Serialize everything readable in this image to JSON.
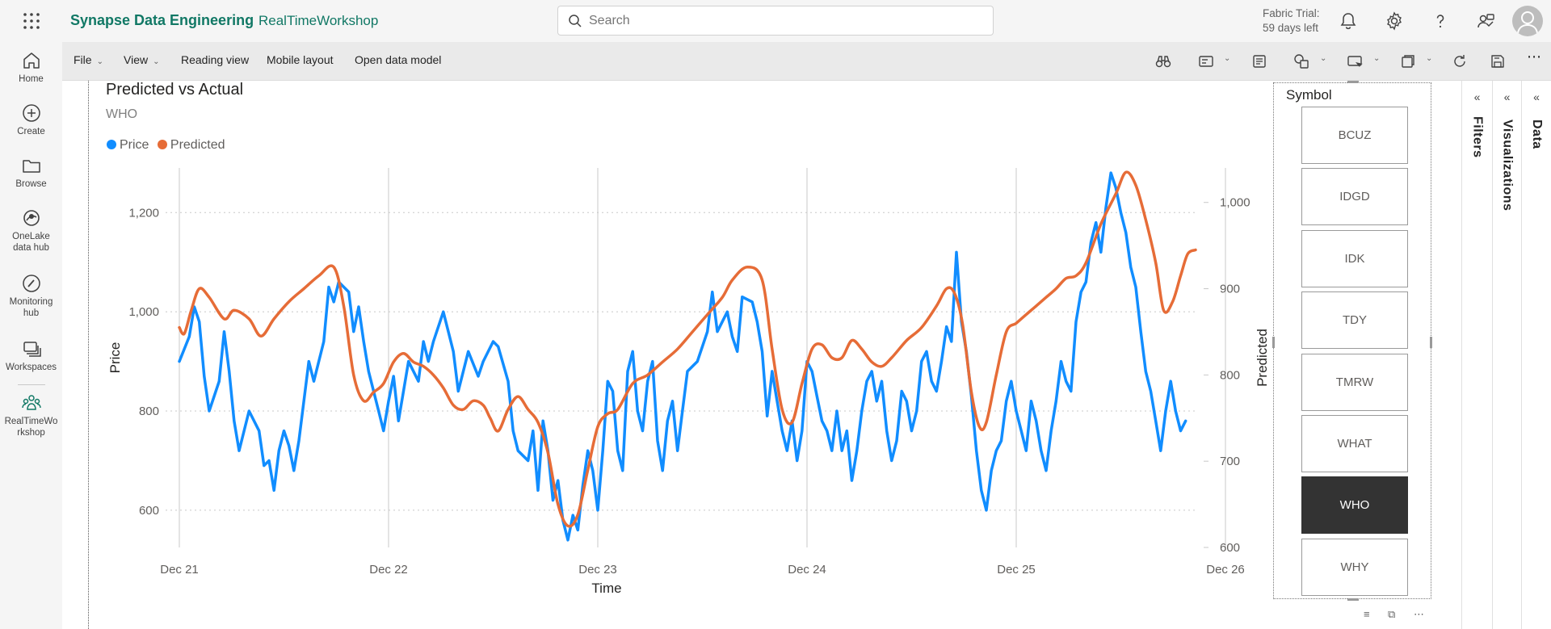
{
  "app": {
    "brand": "Synapse Data Engineering",
    "workspace": "RealTimeWorkshop",
    "search_placeholder": "Search",
    "trial_line1": "Fabric Trial:",
    "trial_line2": "59 days left",
    "accent_color": "#117865"
  },
  "leftnav": [
    {
      "label": "Home",
      "icon": "home-icon"
    },
    {
      "label": "Create",
      "icon": "plus-circle-icon"
    },
    {
      "label": "Browse",
      "icon": "folder-icon"
    },
    {
      "label": "OneLake data hub",
      "label_line1": "OneLake",
      "label_line2": "data hub",
      "icon": "onelake-icon"
    },
    {
      "label": "Monitoring hub",
      "label_line1": "Monitoring",
      "label_line2": "hub",
      "icon": "monitoring-icon"
    },
    {
      "label": "Workspaces",
      "icon": "workspaces-icon"
    },
    {
      "label": "RealTimeWorkshop",
      "label_line1": "RealTimeWo",
      "label_line2": "rkshop",
      "icon": "workspace-people-icon"
    }
  ],
  "toolbar": {
    "file": "File",
    "view": "View",
    "reading_view": "Reading view",
    "mobile_layout": "Mobile layout",
    "open_data_model": "Open data model"
  },
  "chart": {
    "title": "Predicted vs Actual",
    "subtitle": "WHO"
  },
  "chart_data": {
    "type": "line",
    "title": "Predicted vs Actual",
    "subtitle": "WHO",
    "xlabel": "Time",
    "ylabel": "Price",
    "y2label": "Predicted",
    "x_ticks": [
      "Dec 21",
      "Dec 22",
      "Dec 23",
      "Dec 24",
      "Dec 25",
      "Dec 26"
    ],
    "y_ticks": [
      "600",
      "800",
      "1,000",
      "1,200"
    ],
    "y2_ticks": [
      "600",
      "700",
      "800",
      "900",
      "1,000"
    ],
    "ylim": [
      525,
      1290
    ],
    "y2lim": [
      600,
      1040
    ],
    "grid": true,
    "legend_position": "top-left",
    "series": [
      {
        "name": "Price",
        "color": "#118DFF",
        "axis": "left",
        "points": [
          [
            21.0,
            900
          ],
          [
            21.1,
            950
          ],
          [
            21.15,
            1010
          ],
          [
            21.2,
            980
          ],
          [
            21.25,
            870
          ],
          [
            21.3,
            800
          ],
          [
            21.4,
            860
          ],
          [
            21.45,
            960
          ],
          [
            21.5,
            880
          ],
          [
            21.55,
            780
          ],
          [
            21.6,
            720
          ],
          [
            21.7,
            800
          ],
          [
            21.8,
            760
          ],
          [
            21.85,
            690
          ],
          [
            21.9,
            700
          ],
          [
            21.95,
            640
          ],
          [
            22.0,
            720
          ],
          [
            22.05,
            760
          ],
          [
            22.1,
            730
          ],
          [
            22.15,
            680
          ],
          [
            22.2,
            740
          ],
          [
            22.3,
            900
          ],
          [
            22.35,
            860
          ],
          [
            22.45,
            940
          ],
          [
            22.5,
            1050
          ],
          [
            22.55,
            1020
          ],
          [
            22.6,
            1060
          ],
          [
            22.7,
            1040
          ],
          [
            22.75,
            960
          ],
          [
            22.8,
            1010
          ],
          [
            22.85,
            940
          ],
          [
            22.9,
            880
          ],
          [
            23.0,
            800
          ],
          [
            23.05,
            760
          ],
          [
            23.1,
            820
          ],
          [
            23.15,
            870
          ],
          [
            23.2,
            780
          ],
          [
            23.3,
            900
          ],
          [
            23.4,
            860
          ],
          [
            23.45,
            940
          ],
          [
            23.5,
            900
          ],
          [
            23.55,
            940
          ],
          [
            23.65,
            1000
          ],
          [
            23.7,
            960
          ],
          [
            23.75,
            920
          ],
          [
            23.8,
            840
          ],
          [
            23.85,
            880
          ],
          [
            23.9,
            920
          ],
          [
            24.0,
            870
          ],
          [
            24.05,
            900
          ],
          [
            24.15,
            940
          ],
          [
            24.2,
            930
          ],
          [
            24.3,
            860
          ],
          [
            24.35,
            760
          ],
          [
            24.4,
            720
          ],
          [
            24.5,
            700
          ],
          [
            24.55,
            760
          ],
          [
            24.6,
            640
          ],
          [
            24.65,
            780
          ],
          [
            24.7,
            720
          ],
          [
            24.75,
            620
          ],
          [
            24.8,
            660
          ],
          [
            24.85,
            580
          ],
          [
            24.9,
            540
          ],
          [
            24.95,
            590
          ],
          [
            25.0,
            560
          ],
          [
            25.05,
            650
          ],
          [
            25.1,
            720
          ],
          [
            25.15,
            680
          ],
          [
            25.2,
            600
          ],
          [
            25.25,
            720
          ],
          [
            25.3,
            860
          ],
          [
            25.35,
            840
          ],
          [
            25.4,
            720
          ],
          [
            25.45,
            680
          ],
          [
            25.5,
            880
          ],
          [
            25.55,
            920
          ],
          [
            25.6,
            800
          ],
          [
            25.65,
            760
          ],
          [
            25.7,
            860
          ],
          [
            25.75,
            900
          ],
          [
            25.8,
            740
          ],
          [
            25.85,
            680
          ],
          [
            25.9,
            780
          ],
          [
            25.95,
            820
          ],
          [
            26.0,
            720
          ],
          [
            26.05,
            800
          ],
          [
            26.1,
            880
          ],
          [
            26.2,
            900
          ],
          [
            26.3,
            960
          ],
          [
            26.35,
            1040
          ],
          [
            26.4,
            960
          ],
          [
            26.5,
            1000
          ],
          [
            26.55,
            950
          ],
          [
            26.6,
            920
          ],
          [
            26.65,
            1030
          ],
          [
            26.75,
            1020
          ],
          [
            26.8,
            980
          ],
          [
            26.85,
            920
          ],
          [
            26.9,
            790
          ],
          [
            26.95,
            880
          ],
          [
            27.0,
            820
          ],
          [
            27.05,
            760
          ],
          [
            27.1,
            720
          ],
          [
            27.15,
            780
          ],
          [
            27.2,
            700
          ],
          [
            27.25,
            760
          ],
          [
            27.3,
            900
          ],
          [
            27.35,
            880
          ],
          [
            27.4,
            830
          ],
          [
            27.45,
            780
          ],
          [
            27.5,
            760
          ],
          [
            27.55,
            720
          ],
          [
            27.6,
            800
          ],
          [
            27.65,
            720
          ],
          [
            27.7,
            760
          ],
          [
            27.75,
            660
          ],
          [
            27.8,
            720
          ],
          [
            27.85,
            800
          ],
          [
            27.9,
            860
          ],
          [
            27.95,
            880
          ],
          [
            28.0,
            820
          ],
          [
            28.05,
            860
          ],
          [
            28.1,
            760
          ],
          [
            28.15,
            700
          ],
          [
            28.2,
            740
          ],
          [
            28.25,
            840
          ],
          [
            28.3,
            820
          ],
          [
            28.35,
            760
          ],
          [
            28.4,
            800
          ],
          [
            28.45,
            900
          ],
          [
            28.5,
            920
          ],
          [
            28.55,
            860
          ],
          [
            28.6,
            840
          ],
          [
            28.65,
            900
          ],
          [
            28.7,
            970
          ],
          [
            28.75,
            940
          ],
          [
            28.8,
            1120
          ],
          [
            28.85,
            980
          ],
          [
            28.9,
            920
          ],
          [
            28.95,
            830
          ],
          [
            29.0,
            720
          ],
          [
            29.05,
            640
          ],
          [
            29.1,
            600
          ],
          [
            29.15,
            680
          ],
          [
            29.2,
            720
          ],
          [
            29.25,
            740
          ],
          [
            29.3,
            820
          ],
          [
            29.35,
            860
          ],
          [
            29.4,
            800
          ],
          [
            29.45,
            760
          ],
          [
            29.5,
            720
          ],
          [
            29.55,
            820
          ],
          [
            29.6,
            780
          ],
          [
            29.65,
            720
          ],
          [
            29.7,
            680
          ],
          [
            29.75,
            760
          ],
          [
            29.8,
            820
          ],
          [
            29.85,
            900
          ],
          [
            29.9,
            860
          ],
          [
            29.95,
            840
          ],
          [
            30.0,
            980
          ],
          [
            30.05,
            1040
          ],
          [
            30.1,
            1060
          ],
          [
            30.15,
            1140
          ],
          [
            30.2,
            1180
          ],
          [
            30.25,
            1120
          ],
          [
            30.3,
            1210
          ],
          [
            30.35,
            1280
          ],
          [
            30.4,
            1250
          ],
          [
            30.45,
            1200
          ],
          [
            30.5,
            1160
          ],
          [
            30.55,
            1090
          ],
          [
            30.6,
            1050
          ],
          [
            30.65,
            960
          ],
          [
            30.7,
            880
          ],
          [
            30.75,
            840
          ],
          [
            30.8,
            780
          ],
          [
            30.85,
            720
          ],
          [
            30.9,
            800
          ],
          [
            30.95,
            860
          ],
          [
            31.0,
            800
          ],
          [
            31.05,
            760
          ],
          [
            31.1,
            780
          ]
        ]
      },
      {
        "name": "Predicted",
        "color": "#E66C37",
        "axis": "right",
        "points": [
          [
            21.0,
            855
          ],
          [
            21.05,
            848
          ],
          [
            21.12,
            875
          ],
          [
            21.2,
            900
          ],
          [
            21.3,
            890
          ],
          [
            21.45,
            865
          ],
          [
            21.55,
            875
          ],
          [
            21.7,
            865
          ],
          [
            21.82,
            845
          ],
          [
            21.95,
            865
          ],
          [
            22.1,
            885
          ],
          [
            22.25,
            900
          ],
          [
            22.4,
            915
          ],
          [
            22.55,
            925
          ],
          [
            22.65,
            880
          ],
          [
            22.75,
            800
          ],
          [
            22.85,
            770
          ],
          [
            22.95,
            780
          ],
          [
            23.05,
            790
          ],
          [
            23.15,
            815
          ],
          [
            23.25,
            825
          ],
          [
            23.35,
            815
          ],
          [
            23.45,
            810
          ],
          [
            23.55,
            800
          ],
          [
            23.65,
            785
          ],
          [
            23.75,
            765
          ],
          [
            23.85,
            760
          ],
          [
            23.95,
            770
          ],
          [
            24.05,
            765
          ],
          [
            24.12,
            750
          ],
          [
            24.2,
            735
          ],
          [
            24.3,
            760
          ],
          [
            24.4,
            775
          ],
          [
            24.5,
            760
          ],
          [
            24.6,
            745
          ],
          [
            24.7,
            710
          ],
          [
            24.8,
            650
          ],
          [
            24.9,
            625
          ],
          [
            25.0,
            638
          ],
          [
            25.1,
            690
          ],
          [
            25.2,
            740
          ],
          [
            25.3,
            755
          ],
          [
            25.4,
            760
          ],
          [
            25.55,
            790
          ],
          [
            25.7,
            800
          ],
          [
            25.85,
            815
          ],
          [
            26.0,
            830
          ],
          [
            26.15,
            850
          ],
          [
            26.3,
            870
          ],
          [
            26.45,
            890
          ],
          [
            26.55,
            910
          ],
          [
            26.7,
            925
          ],
          [
            26.85,
            910
          ],
          [
            26.95,
            830
          ],
          [
            27.05,
            760
          ],
          [
            27.15,
            745
          ],
          [
            27.25,
            790
          ],
          [
            27.35,
            830
          ],
          [
            27.45,
            835
          ],
          [
            27.55,
            820
          ],
          [
            27.65,
            820
          ],
          [
            27.75,
            840
          ],
          [
            27.85,
            830
          ],
          [
            27.95,
            815
          ],
          [
            28.05,
            810
          ],
          [
            28.15,
            820
          ],
          [
            28.3,
            840
          ],
          [
            28.45,
            855
          ],
          [
            28.6,
            880
          ],
          [
            28.7,
            900
          ],
          [
            28.78,
            895
          ],
          [
            28.86,
            860
          ],
          [
            28.95,
            780
          ],
          [
            29.03,
            740
          ],
          [
            29.1,
            745
          ],
          [
            29.2,
            800
          ],
          [
            29.3,
            850
          ],
          [
            29.4,
            860
          ],
          [
            29.5,
            870
          ],
          [
            29.6,
            880
          ],
          [
            29.7,
            890
          ],
          [
            29.8,
            900
          ],
          [
            29.9,
            912
          ],
          [
            30.0,
            915
          ],
          [
            30.1,
            930
          ],
          [
            30.25,
            975
          ],
          [
            30.4,
            1010
          ],
          [
            30.5,
            1035
          ],
          [
            30.6,
            1020
          ],
          [
            30.7,
            980
          ],
          [
            30.8,
            930
          ],
          [
            30.88,
            875
          ],
          [
            30.97,
            885
          ],
          [
            31.05,
            915
          ],
          [
            31.12,
            940
          ],
          [
            31.2,
            945
          ]
        ]
      }
    ]
  },
  "slicer": {
    "title": "Symbol",
    "options": [
      "BCUZ",
      "IDGD",
      "IDK",
      "TDY",
      "TMRW",
      "WHAT",
      "WHO",
      "WHY"
    ],
    "selected": "WHO"
  },
  "panes": {
    "filters": "Filters",
    "visualizations": "Visualizations",
    "data": "Data"
  }
}
